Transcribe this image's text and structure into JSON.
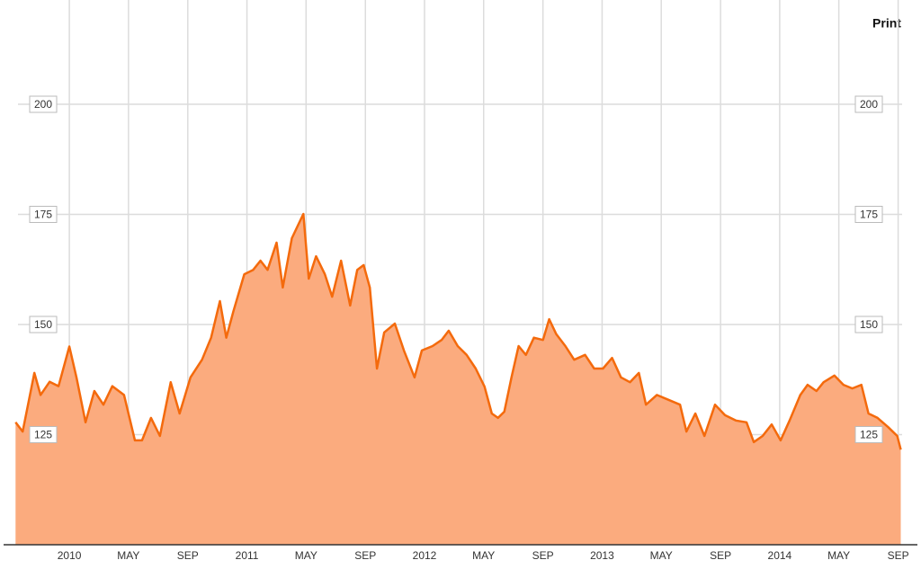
{
  "print_button": "Print",
  "chart_data": {
    "type": "area",
    "x": [
      2009.697,
      2009.737,
      2009.803,
      2009.838,
      2009.889,
      2009.939,
      2010.0,
      2010.04,
      2010.091,
      2010.141,
      2010.192,
      2010.242,
      2010.308,
      2010.369,
      2010.409,
      2010.46,
      2010.51,
      2010.571,
      2010.621,
      2010.682,
      2010.747,
      2010.798,
      2010.848,
      2010.884,
      2010.924,
      2010.985,
      2011.035,
      2011.076,
      2011.116,
      2011.167,
      2011.202,
      2011.253,
      2011.318,
      2011.348,
      2011.389,
      2011.439,
      2011.48,
      2011.53,
      2011.581,
      2011.621,
      2011.657,
      2011.692,
      2011.732,
      2011.773,
      2011.833,
      2011.884,
      2011.944,
      2011.985,
      2012.045,
      2012.096,
      2012.136,
      2012.187,
      2012.237,
      2012.288,
      2012.338,
      2012.379,
      2012.414,
      2012.449,
      2012.49,
      2012.53,
      2012.571,
      2012.616,
      2012.667,
      2012.702,
      2012.742,
      2012.793,
      2012.843,
      2012.904,
      2012.955,
      2013.005,
      2013.056,
      2013.106,
      2013.157,
      2013.207,
      2013.247,
      2013.308,
      2013.374,
      2013.439,
      2013.475,
      2013.525,
      2013.576,
      2013.636,
      2013.692,
      2013.753,
      2013.813,
      2013.854,
      2013.904,
      2013.955,
      2014.005,
      2014.056,
      2014.116,
      2014.157,
      2014.207,
      2014.247,
      2014.308,
      2014.359,
      2014.409,
      2014.46,
      2014.5,
      2014.551,
      2014.611,
      2014.662,
      2014.682
    ],
    "series": [
      {
        "color": "#f46a0c",
        "fill": "#fbab7e",
        "values": [
          127.8,
          125.7,
          139,
          134,
          137,
          136,
          145,
          138,
          127.8,
          134.9,
          131.8,
          136,
          134,
          123.7,
          123.7,
          128.8,
          124.7,
          136.9,
          129.8,
          138,
          142,
          147,
          155.3,
          147,
          153,
          161.4,
          162.4,
          164.5,
          162.4,
          168.6,
          158.4,
          169.6,
          175.1,
          160.4,
          165.5,
          161.4,
          156.3,
          164.5,
          154.3,
          162.4,
          163.5,
          158.4,
          140,
          148.2,
          150.2,
          144.1,
          138,
          144.1,
          145.1,
          146.5,
          148.6,
          145.1,
          143.1,
          140,
          135.9,
          129.8,
          128.8,
          130.2,
          138,
          145.1,
          143.1,
          147,
          146.5,
          151.2,
          147.8,
          145.1,
          142,
          143.1,
          140,
          140,
          142.4,
          138,
          136.9,
          139,
          131.8,
          134,
          132.9,
          131.8,
          125.7,
          129.8,
          124.7,
          131.8,
          129.4,
          128.2,
          127.8,
          123.3,
          124.7,
          127.3,
          123.7,
          128.2,
          134,
          136.3,
          134.9,
          136.9,
          138.4,
          136.3,
          135.5,
          136.3,
          129.8,
          128.8,
          126.7,
          124.7,
          121.6
        ]
      }
    ],
    "xlim": [
      2009.65,
      2014.74
    ],
    "xticks": [
      2010,
      {
        "value": 2010.333,
        "label": "MAY"
      },
      {
        "value": 2010.667,
        "label": "SEP"
      },
      2011,
      {
        "value": 2011.333,
        "label": "MAY"
      },
      {
        "value": 2011.667,
        "label": "SEP"
      },
      2012,
      {
        "value": 2012.333,
        "label": "MAY"
      },
      {
        "value": 2012.667,
        "label": "SEP"
      },
      2013,
      {
        "value": 2013.333,
        "label": "MAY"
      },
      {
        "value": 2013.667,
        "label": "SEP"
      },
      2014,
      {
        "value": 2014.333,
        "label": "MAY"
      },
      {
        "value": 2014.667,
        "label": "SEP"
      }
    ],
    "ylim": [
      100,
      222
    ],
    "yticks": [
      125,
      150,
      175,
      200
    ],
    "grid": true
  }
}
